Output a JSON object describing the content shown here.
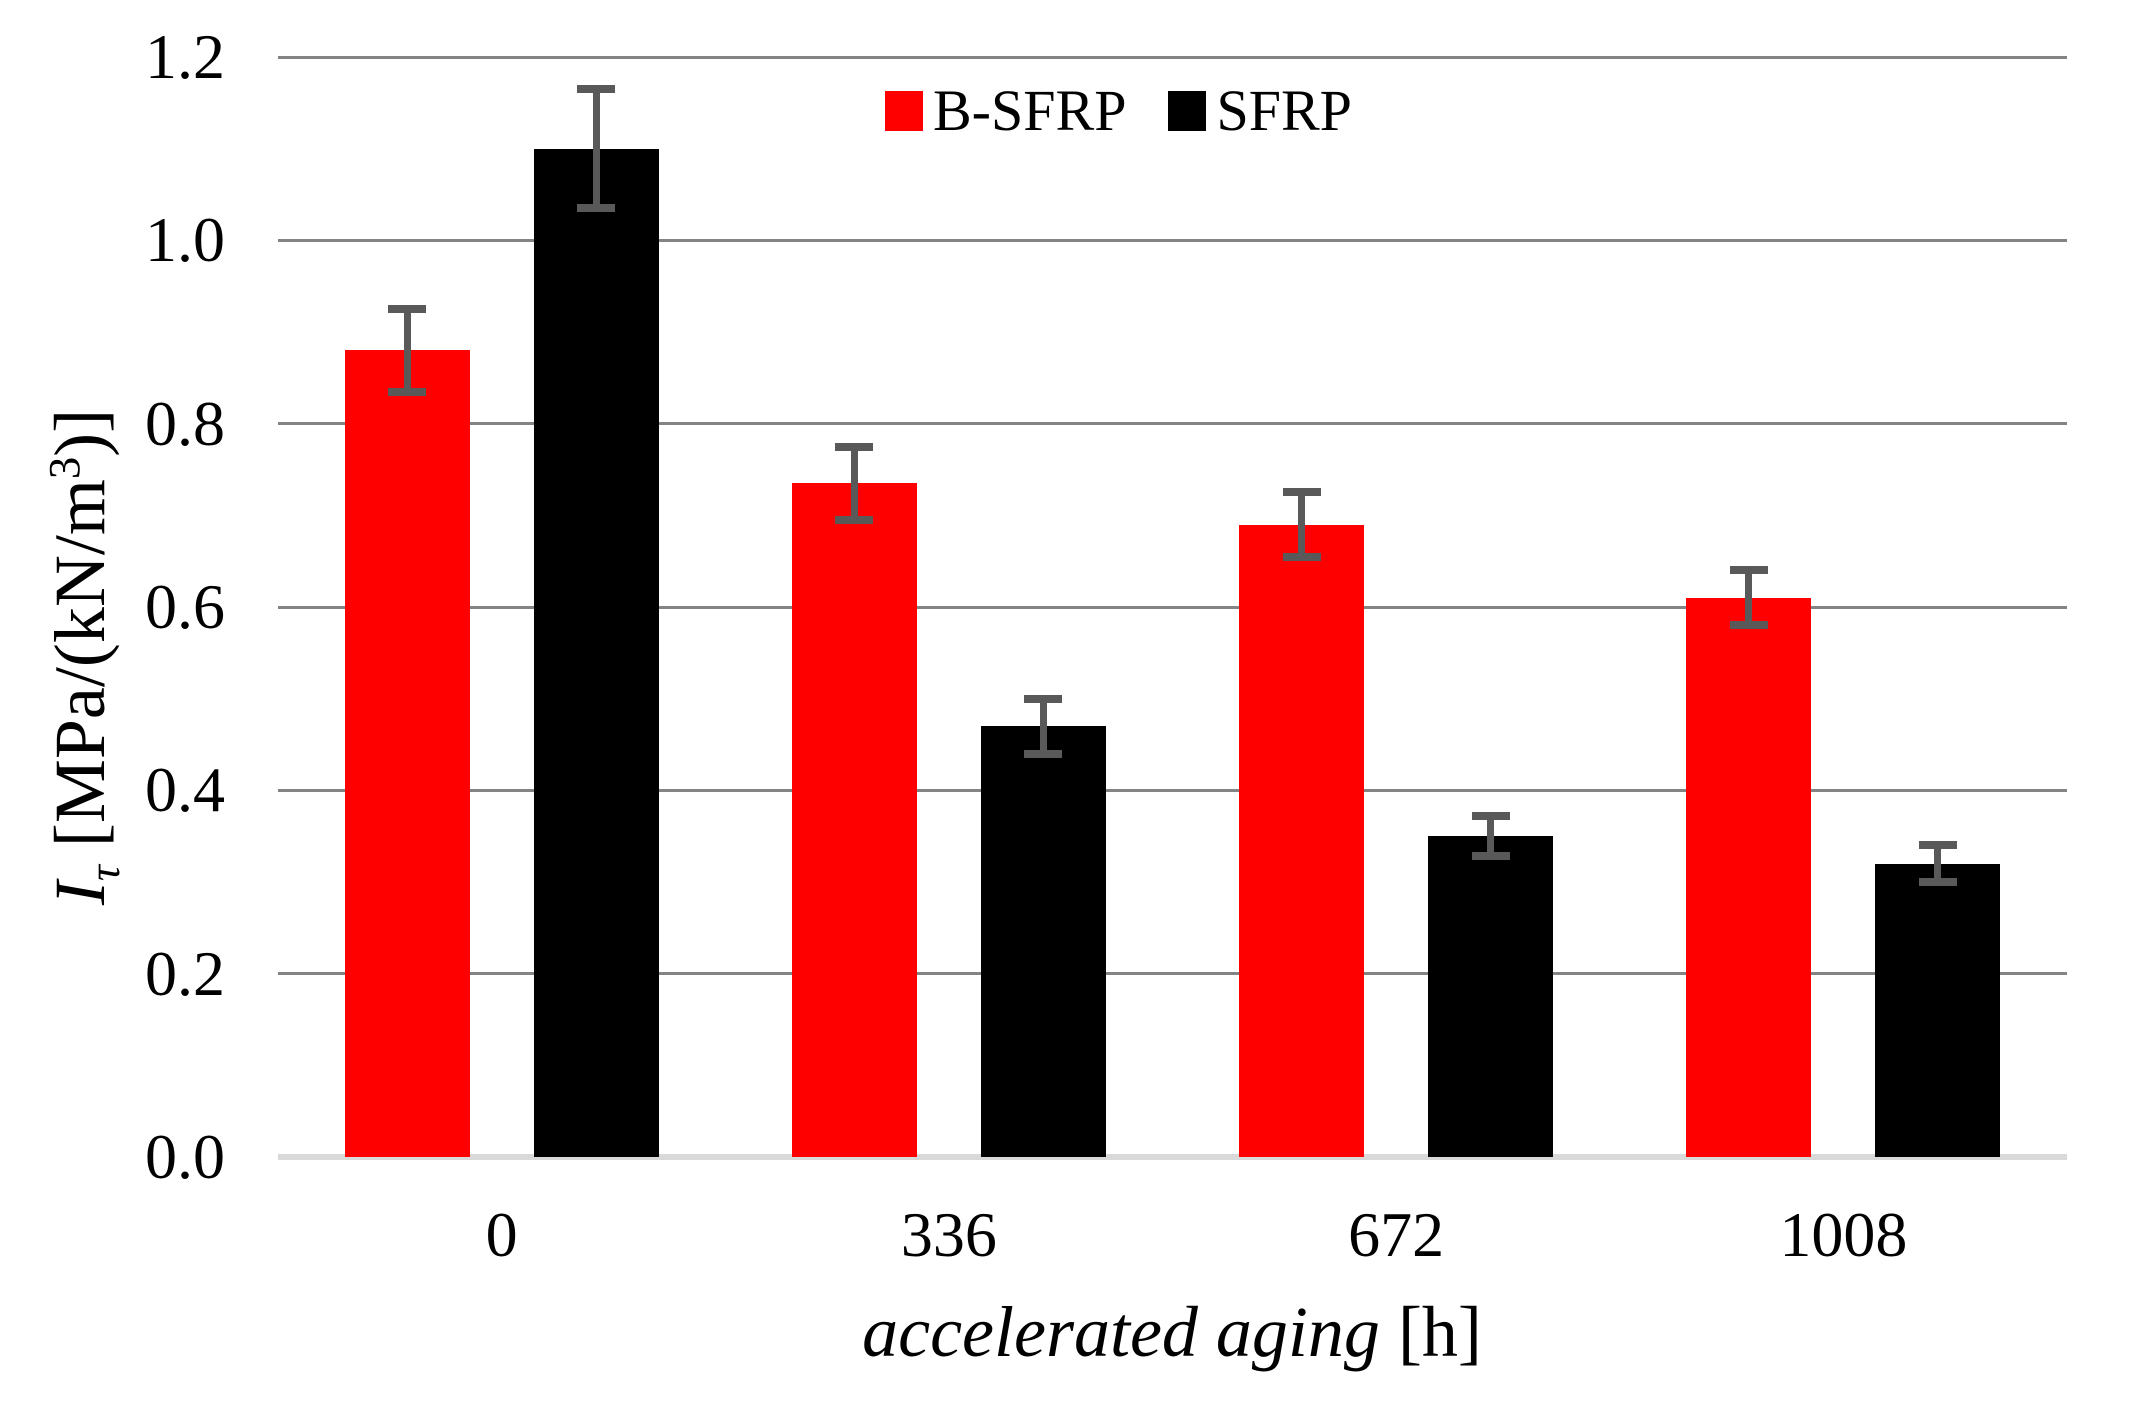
{
  "y_axis": {
    "title_parts": {
      "var": "I",
      "sub": "τ",
      "unit_pre": " [MPa/(kN/m",
      "sup": "3",
      "unit_post": ")]"
    },
    "tick_labels": [
      "0.0",
      "0.2",
      "0.4",
      "0.6",
      "0.8",
      "1.0",
      "1.2"
    ]
  },
  "x_axis": {
    "title_italic": "accelerated aging",
    "title_unit": " [h]",
    "tick_labels": [
      "0",
      "336",
      "672",
      "1008"
    ]
  },
  "legend": {
    "items": [
      {
        "label": "B-SFRP",
        "color": "#ff0000"
      },
      {
        "label": "SFRP",
        "color": "#000000"
      }
    ]
  },
  "chart_data": {
    "type": "bar",
    "title": "",
    "categories": [
      0,
      336,
      672,
      1008
    ],
    "xlabel": "accelerated aging [h]",
    "ylabel": "I_τ [MPa/(kN/m^3)]",
    "ylim": [
      0.0,
      1.2
    ],
    "ytick_step": 0.2,
    "grid": true,
    "legend_position": "top-center",
    "series": [
      {
        "name": "B-SFRP",
        "color": "#ff0000",
        "values": [
          0.88,
          0.735,
          0.69,
          0.61
        ],
        "errors": [
          0.045,
          0.04,
          0.035,
          0.03
        ]
      },
      {
        "name": "SFRP",
        "color": "#000000",
        "values": [
          1.1,
          0.47,
          0.35,
          0.32
        ],
        "errors": [
          0.065,
          0.03,
          0.022,
          0.02
        ]
      }
    ],
    "colors": {
      "gridline": "#848484",
      "baseline": "#d9d9d9",
      "error_bar": "#595959",
      "text": "#000000"
    }
  }
}
